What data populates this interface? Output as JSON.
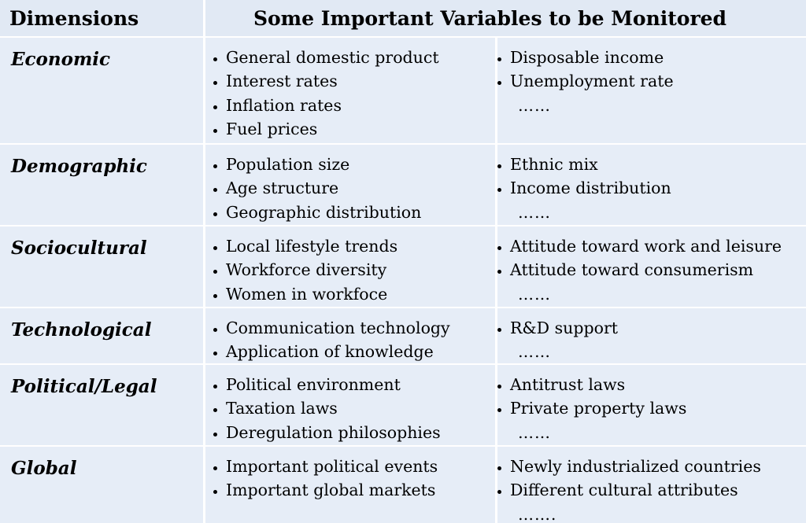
{
  "table": {
    "header": [
      "Dimensions",
      "Some Important Variables to be Monitored"
    ],
    "rows": [
      {
        "dimension": "Economic",
        "left": [
          "General domestic product",
          "Interest rates",
          "Inflation rates",
          "Fuel prices"
        ],
        "right": [
          "Disposable income",
          "Unemployment rate"
        ],
        "more": "……"
      },
      {
        "dimension": "Demographic",
        "left": [
          "Population size",
          "Age structure",
          "Geographic distribution"
        ],
        "right": [
          "Ethnic mix",
          "Income distribution"
        ],
        "more": "……"
      },
      {
        "dimension": "Sociocultural",
        "left": [
          "Local lifestyle trends",
          "Workforce diversity",
          "Women in workfoce"
        ],
        "right": [
          "Attitude toward work and leisure",
          "Attitude toward consumerism"
        ],
        "more": "……"
      },
      {
        "dimension": "Technological",
        "left": [
          "Communication technology",
          "Application of knowledge"
        ],
        "right": [
          "R&D support"
        ],
        "more": "……"
      },
      {
        "dimension": "Political/Legal",
        "left": [
          "Political environment",
          "Taxation laws",
          "Deregulation philosophies"
        ],
        "right": [
          "Antitrust laws",
          "Private property laws"
        ],
        "more": "……"
      },
      {
        "dimension": "Global",
        "left": [
          "Important political events",
          "Important global markets"
        ],
        "right": [
          "Newly industrialized countries",
          "Different cultural attributes"
        ],
        "more": "……."
      }
    ]
  }
}
